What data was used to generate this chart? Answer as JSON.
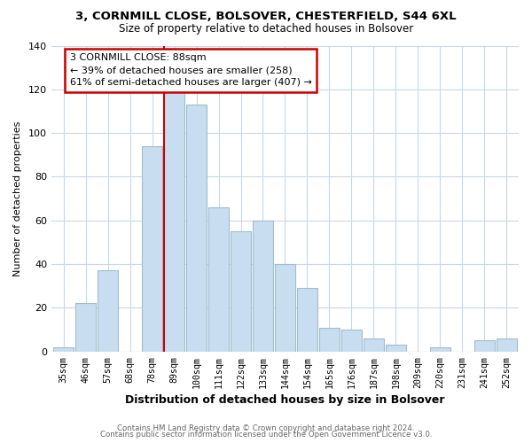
{
  "title": "3, CORNMILL CLOSE, BOLSOVER, CHESTERFIELD, S44 6XL",
  "subtitle": "Size of property relative to detached houses in Bolsover",
  "xlabel": "Distribution of detached houses by size in Bolsover",
  "ylabel": "Number of detached properties",
  "bar_labels": [
    "35sqm",
    "46sqm",
    "57sqm",
    "68sqm",
    "78sqm",
    "89sqm",
    "100sqm",
    "111sqm",
    "122sqm",
    "133sqm",
    "144sqm",
    "154sqm",
    "165sqm",
    "176sqm",
    "187sqm",
    "198sqm",
    "209sqm",
    "220sqm",
    "231sqm",
    "241sqm",
    "252sqm"
  ],
  "bar_values": [
    2,
    22,
    37,
    0,
    94,
    119,
    113,
    66,
    55,
    60,
    40,
    29,
    11,
    10,
    6,
    3,
    0,
    2,
    0,
    5,
    6
  ],
  "bar_color": "#c8ddef",
  "bar_edge_color": "#a0becd",
  "vline_color": "#cc0000",
  "vline_bin_index": 5,
  "annotation_title": "3 CORNMILL CLOSE: 88sqm",
  "annotation_line1": "← 39% of detached houses are smaller (258)",
  "annotation_line2": "61% of semi-detached houses are larger (407) →",
  "annotation_box_color": "#ffffff",
  "annotation_box_edgecolor": "#cc0000",
  "ylim": [
    0,
    140
  ],
  "yticks": [
    0,
    20,
    40,
    60,
    80,
    100,
    120,
    140
  ],
  "footer1": "Contains HM Land Registry data © Crown copyright and database right 2024.",
  "footer2": "Contains public sector information licensed under the Open Government Licence v3.0.",
  "bg_color": "#ffffff",
  "grid_color": "#c8d8e8"
}
